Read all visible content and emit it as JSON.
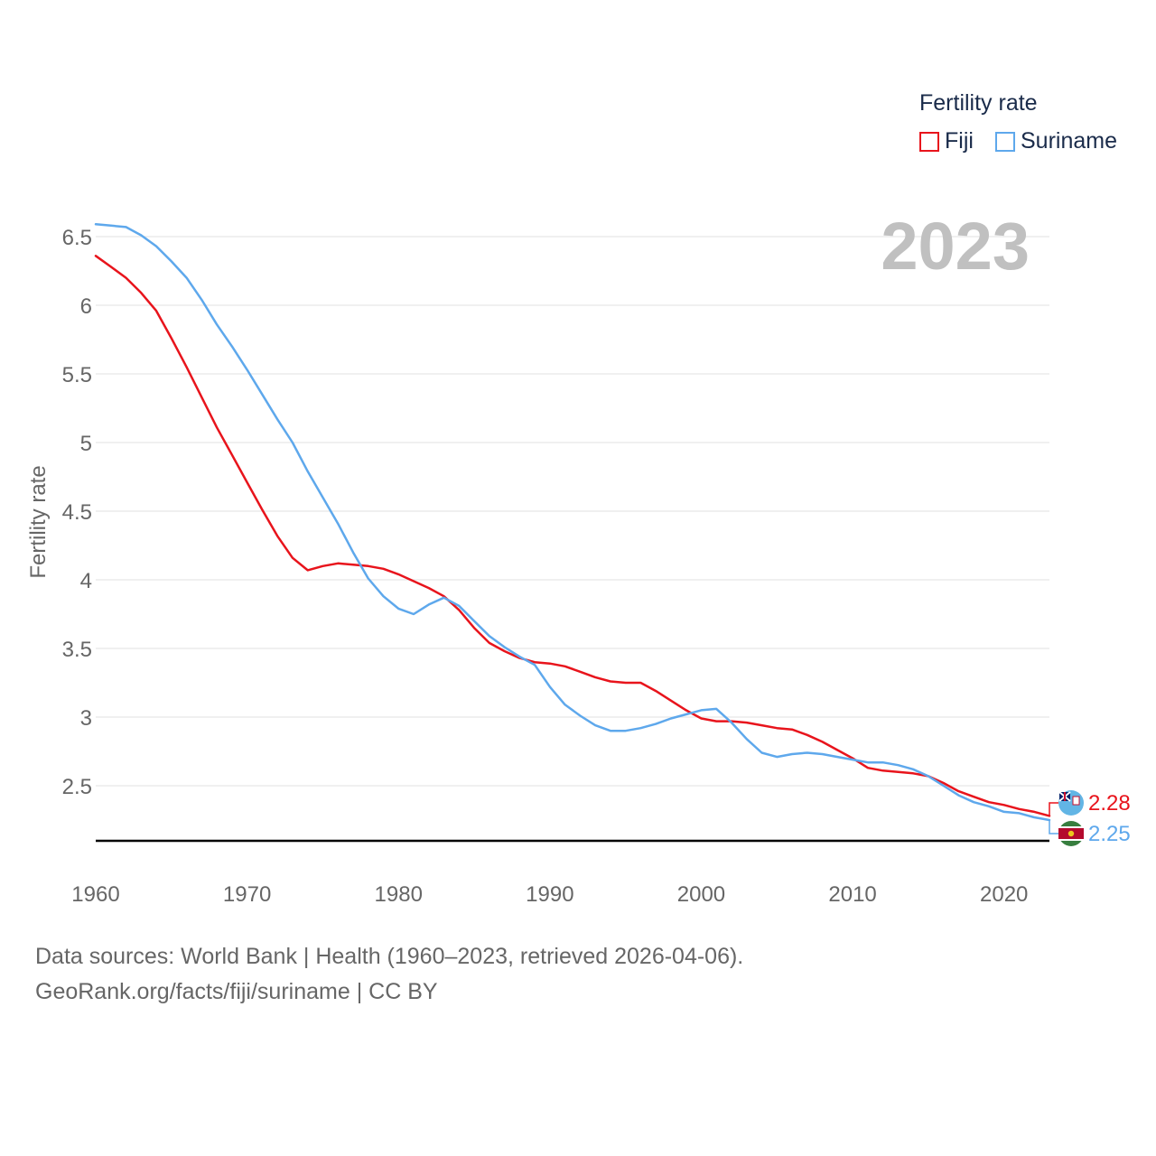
{
  "legend": {
    "title": "Fertility rate",
    "items": [
      {
        "label": "Fiji",
        "color": "#e8141c"
      },
      {
        "label": "Suriname",
        "color": "#5ea8ec"
      }
    ]
  },
  "footer": {
    "line1": "Data sources: World Bank | Health (1960–2023, retrieved 2026-04-06).",
    "line2": "GeoRank.org/facts/fiji/suriname | CC BY"
  },
  "chart_data": {
    "type": "line",
    "ylabel": "Fertility rate",
    "xlabel": "",
    "year_label": "2023",
    "xlim": [
      1960,
      2023
    ],
    "ylim": [
      2.1,
      6.6
    ],
    "yticks": [
      2.5,
      3,
      3.5,
      4,
      4.5,
      5,
      5.5,
      6,
      6.5
    ],
    "ytick_labels": [
      "2.5",
      "3",
      "3.5",
      "4",
      "4.5",
      "5",
      "5.5",
      "6",
      "6.5"
    ],
    "xticks": [
      1960,
      1970,
      1980,
      1990,
      2000,
      2010,
      2020
    ],
    "xtick_labels": [
      "1960",
      "1970",
      "1980",
      "1990",
      "2000",
      "2010",
      "2020"
    ],
    "x": [
      1960,
      1961,
      1962,
      1963,
      1964,
      1965,
      1966,
      1967,
      1968,
      1969,
      1970,
      1971,
      1972,
      1973,
      1974,
      1975,
      1976,
      1977,
      1978,
      1979,
      1980,
      1981,
      1982,
      1983,
      1984,
      1985,
      1986,
      1987,
      1988,
      1989,
      1990,
      1991,
      1992,
      1993,
      1994,
      1995,
      1996,
      1997,
      1998,
      1999,
      2000,
      2001,
      2002,
      2003,
      2004,
      2005,
      2006,
      2007,
      2008,
      2009,
      2010,
      2011,
      2012,
      2013,
      2014,
      2015,
      2016,
      2017,
      2018,
      2019,
      2020,
      2021,
      2022,
      2023
    ],
    "series": [
      {
        "name": "Fiji",
        "color": "#e8141c",
        "end_label": "2.28",
        "values": [
          6.36,
          6.28,
          6.2,
          6.09,
          5.96,
          5.76,
          5.55,
          5.33,
          5.11,
          4.91,
          4.71,
          4.51,
          4.32,
          4.16,
          4.07,
          4.1,
          4.12,
          4.11,
          4.1,
          4.08,
          4.04,
          3.99,
          3.94,
          3.88,
          3.78,
          3.65,
          3.54,
          3.48,
          3.43,
          3.4,
          3.39,
          3.37,
          3.33,
          3.29,
          3.26,
          3.25,
          3.25,
          3.19,
          3.12,
          3.05,
          2.99,
          2.97,
          2.97,
          2.96,
          2.94,
          2.92,
          2.91,
          2.87,
          2.82,
          2.76,
          2.7,
          2.63,
          2.61,
          2.6,
          2.59,
          2.57,
          2.52,
          2.46,
          2.42,
          2.38,
          2.36,
          2.33,
          2.31,
          2.28
        ]
      },
      {
        "name": "Suriname",
        "color": "#5ea8ec",
        "end_label": "2.25",
        "values": [
          6.59,
          6.58,
          6.57,
          6.51,
          6.43,
          6.32,
          6.2,
          6.04,
          5.86,
          5.7,
          5.53,
          5.35,
          5.17,
          5.0,
          4.79,
          4.6,
          4.41,
          4.2,
          4.01,
          3.88,
          3.79,
          3.75,
          3.82,
          3.87,
          3.81,
          3.7,
          3.59,
          3.51,
          3.44,
          3.38,
          3.22,
          3.09,
          3.01,
          2.94,
          2.9,
          2.9,
          2.92,
          2.95,
          2.99,
          3.02,
          3.05,
          3.06,
          2.96,
          2.84,
          2.74,
          2.71,
          2.73,
          2.74,
          2.73,
          2.71,
          2.69,
          2.67,
          2.67,
          2.65,
          2.62,
          2.57,
          2.5,
          2.43,
          2.38,
          2.35,
          2.31,
          2.3,
          2.27,
          2.25
        ]
      }
    ]
  }
}
